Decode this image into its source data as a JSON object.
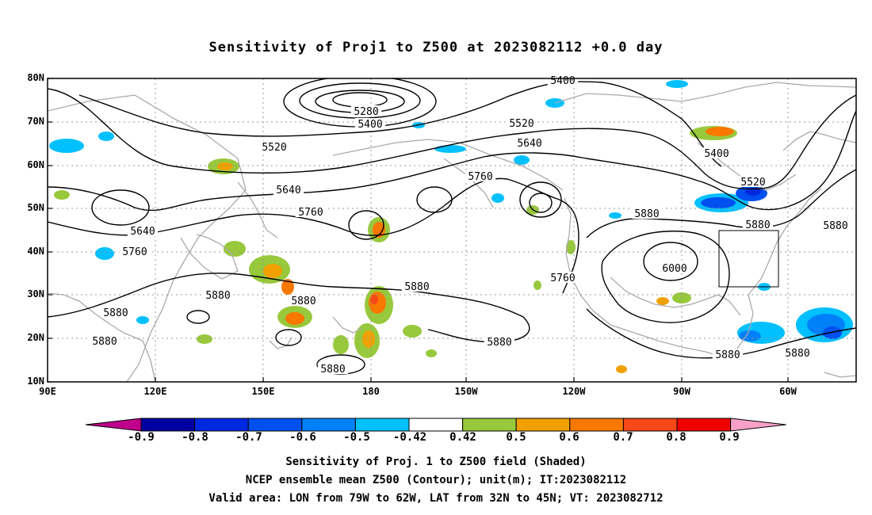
{
  "title": "Sensitivity of Proj1 to Z500 at 2023082112 +0.0 day",
  "lat_labels": [
    "80N",
    "70N",
    "60N",
    "50N",
    "40N",
    "30N",
    "20N",
    "10N"
  ],
  "lon_labels": [
    "90E",
    "120E",
    "150E",
    "180",
    "150W",
    "120W",
    "90W",
    "60W"
  ],
  "contour_labels": [
    "5400",
    "5280",
    "5400",
    "5520",
    "5520",
    "5640",
    "5760",
    "5640",
    "5760",
    "5880",
    "5520",
    "5640",
    "5760",
    "5400",
    "5880",
    "6000",
    "5760",
    "5880",
    "5880",
    "5880",
    "5880",
    "5880",
    "5880",
    "5880",
    "5880",
    "5880",
    "5880"
  ],
  "colorbar": {
    "labels": [
      "-0.9",
      "-0.8",
      "-0.7",
      "-0.6",
      "-0.5",
      "-0.42",
      "0.42",
      "0.5",
      "0.6",
      "0.7",
      "0.8",
      "0.9"
    ],
    "colors": [
      "#0000a0",
      "#0028e0",
      "#0050f0",
      "#0080f8",
      "#00c0ff",
      "#ffffff",
      "#98c83c",
      "#f0a000",
      "#f87800",
      "#f84818",
      "#f00000"
    ],
    "low_cap_color": "#c0008c",
    "high_cap_color": "#f8a0c8"
  },
  "footer": [
    "Sensitivity of Proj. 1 to Z500 field (Shaded)",
    "NCEP ensemble mean Z500 (Contour); unit(m); IT:2023082112",
    "Valid area: LON from 79W to 62W, LAT from 32N to 45N; VT: 2023082712"
  ],
  "colors": {
    "contour": "#000000",
    "coastline": "#aaaaaa",
    "grid": "#999999",
    "positive_shading": "#98c83c",
    "negative_shading": "#00c0ff"
  }
}
